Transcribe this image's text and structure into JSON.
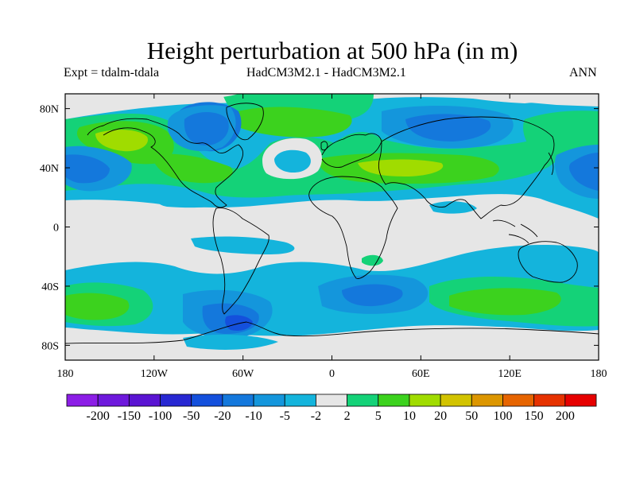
{
  "title": "Height perturbation at 500 hPa (in m)",
  "subtitle_left": "Expt = tdalm-tdala",
  "subtitle_center": "HadCM3M2.1 - HadCM3M2.1",
  "subtitle_right": "ANN",
  "lat_ticks": [
    {
      "value": 80,
      "label": "80N"
    },
    {
      "value": 40,
      "label": "40N"
    },
    {
      "value": 0,
      "label": "0"
    },
    {
      "value": -40,
      "label": "40S"
    },
    {
      "value": -80,
      "label": "80S"
    }
  ],
  "lon_ticks": [
    {
      "value": -180,
      "label": "180"
    },
    {
      "value": -120,
      "label": "120W"
    },
    {
      "value": -60,
      "label": "60W"
    },
    {
      "value": 0,
      "label": "0"
    },
    {
      "value": 60,
      "label": "60E"
    },
    {
      "value": 120,
      "label": "120E"
    },
    {
      "value": 180,
      "label": "180"
    }
  ],
  "colorbar": {
    "labels": [
      "-200",
      "-150",
      "-100",
      "-50",
      "-20",
      "-10",
      "-5",
      "-2",
      "2",
      "5",
      "10",
      "20",
      "50",
      "100",
      "150",
      "200"
    ],
    "colors": [
      "#8c1ee6",
      "#6e19dc",
      "#5a14d2",
      "#2828d2",
      "#1450dc",
      "#1478dc",
      "#1496dc",
      "#14b4dc",
      "#e6e6e6",
      "#14d278",
      "#3cd21e",
      "#a0dc00",
      "#d2c300",
      "#dc9600",
      "#e66400",
      "#e63200",
      "#e60000"
    ]
  },
  "palette": {
    "background": "#e6e6e6",
    "cyan": "#14b4dc",
    "mid_blue": "#1496dc",
    "blue": "#1478dc",
    "deep_blue": "#1450dc",
    "teal_green": "#14d278",
    "green": "#3cd21e",
    "yellow_green": "#a0dc00"
  }
}
